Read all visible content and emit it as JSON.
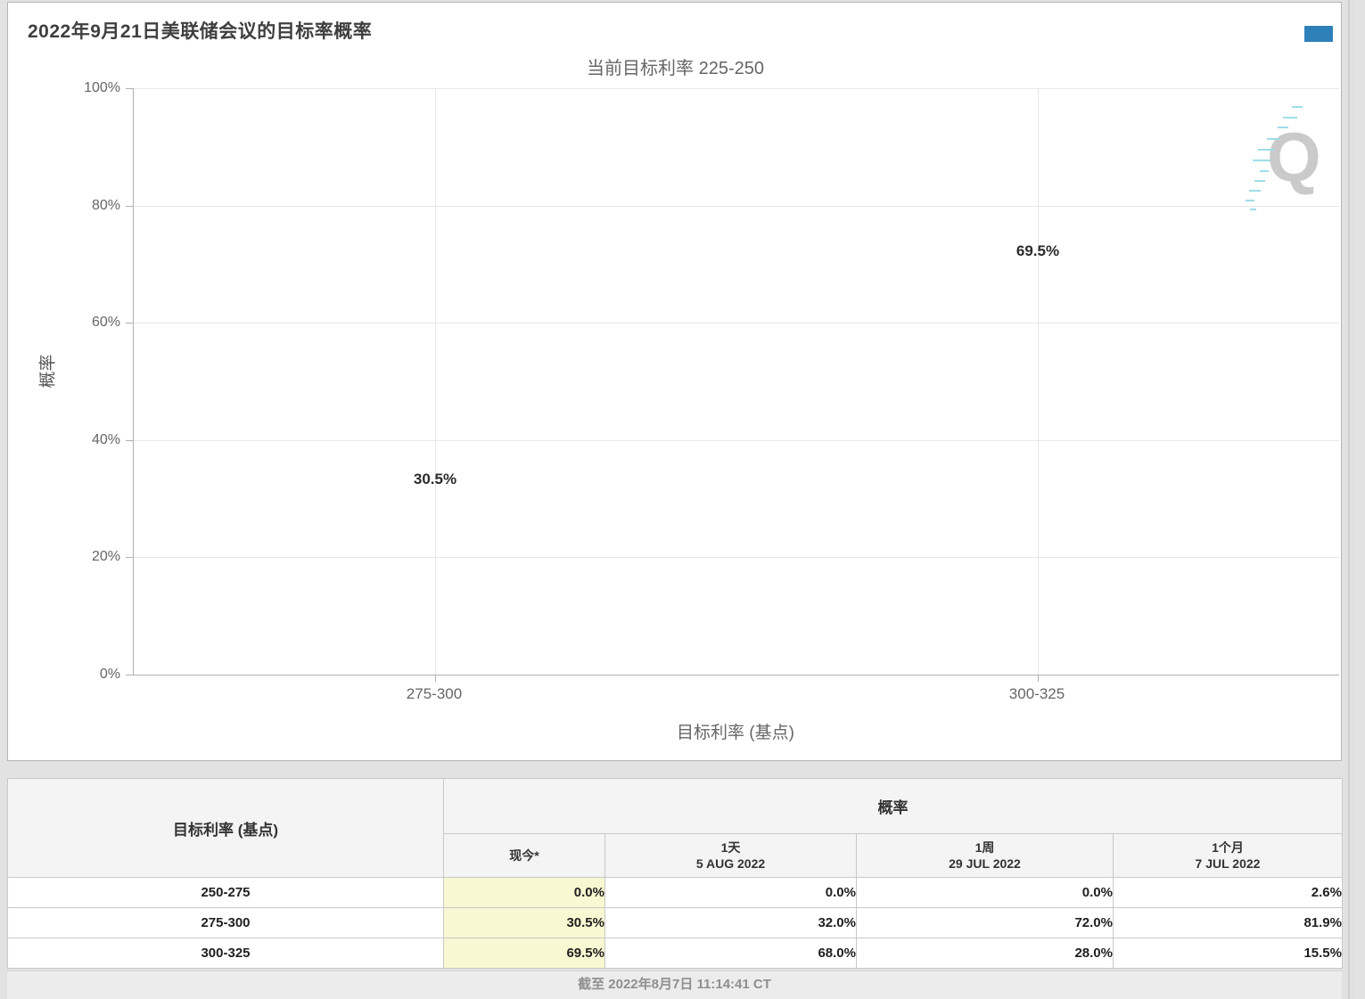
{
  "header": {
    "title": "2022年9月21日美联储会议的目标率概率",
    "menu_icon": "hamburger-icon"
  },
  "chart_data": {
    "type": "bar",
    "title": "2022年9月21日美联储会议的目标率概率",
    "subtitle": "当前目标利率 225-250",
    "categories": [
      "275-300",
      "300-325"
    ],
    "values": [
      30.5,
      69.5
    ],
    "value_labels": [
      "30.5%",
      "69.5%"
    ],
    "xlabel": "目标利率 (基点)",
    "ylabel": "概率",
    "ylim": [
      0,
      100
    ],
    "yticks": [
      "100%",
      "80%",
      "60%",
      "40%",
      "20%",
      "0%"
    ],
    "grid": true,
    "legend": "none",
    "bar_color": "#2e80b9",
    "watermark_letter": "Q"
  },
  "table": {
    "rate_header": "目标利率 (基点)",
    "prob_group_header": "概率",
    "sub_headers": [
      {
        "line1": "现今*",
        "line2": ""
      },
      {
        "line1": "1天",
        "line2": "5 AUG 2022"
      },
      {
        "line1": "1周",
        "line2": "29 JUL 2022"
      },
      {
        "line1": "1个月",
        "line2": "7 JUL 2022"
      }
    ],
    "rows": [
      {
        "cells": [
          "250-275",
          "0.0%",
          "0.0%",
          "0.0%",
          "2.6%"
        ]
      },
      {
        "cells": [
          "275-300",
          "30.5%",
          "32.0%",
          "72.0%",
          "81.9%"
        ]
      },
      {
        "cells": [
          "300-325",
          "69.5%",
          "68.0%",
          "28.0%",
          "15.5%"
        ]
      }
    ],
    "highlight_color": "#f8f8d2"
  },
  "footer": {
    "as_of": "截至 2022年8月7日 11:14:41 CT"
  }
}
